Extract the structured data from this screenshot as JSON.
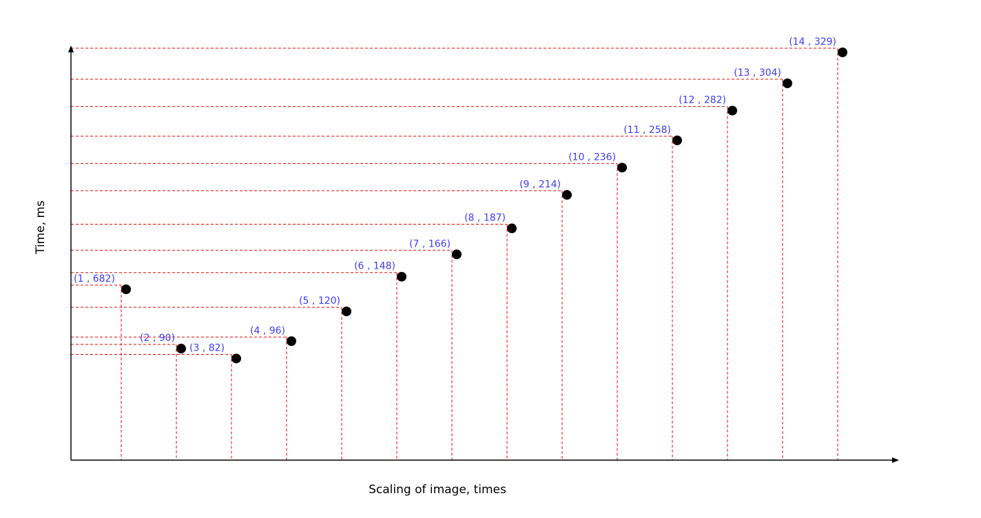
{
  "chart_data": {
    "type": "scatter",
    "title": "",
    "xlabel": "Scaling of image, times",
    "ylabel": "Time, ms",
    "x": [
      1,
      2,
      3,
      4,
      5,
      6,
      7,
      8,
      9,
      10,
      11,
      12,
      13,
      14
    ],
    "y": [
      682,
      90,
      82,
      96,
      120,
      148,
      166,
      187,
      214,
      236,
      258,
      282,
      304,
      329
    ],
    "point_labels": [
      "(1 , 682)",
      "(2 , 90)",
      "(3 , 82)",
      "(4 , 96)",
      "(5 , 120)",
      "(6 , 148)",
      "(7 , 166)",
      "(8 , 187)",
      "(9 , 214)",
      "(10 , 236)",
      "(11 , 258)",
      "(12 , 282)",
      "(13 , 304)",
      "(14 , 329)"
    ],
    "grid": false,
    "guide_lines": true,
    "colors": {
      "points": "#000000",
      "labels": "#3a3aff",
      "guides": "#ee0000",
      "axes": "#000000"
    }
  }
}
